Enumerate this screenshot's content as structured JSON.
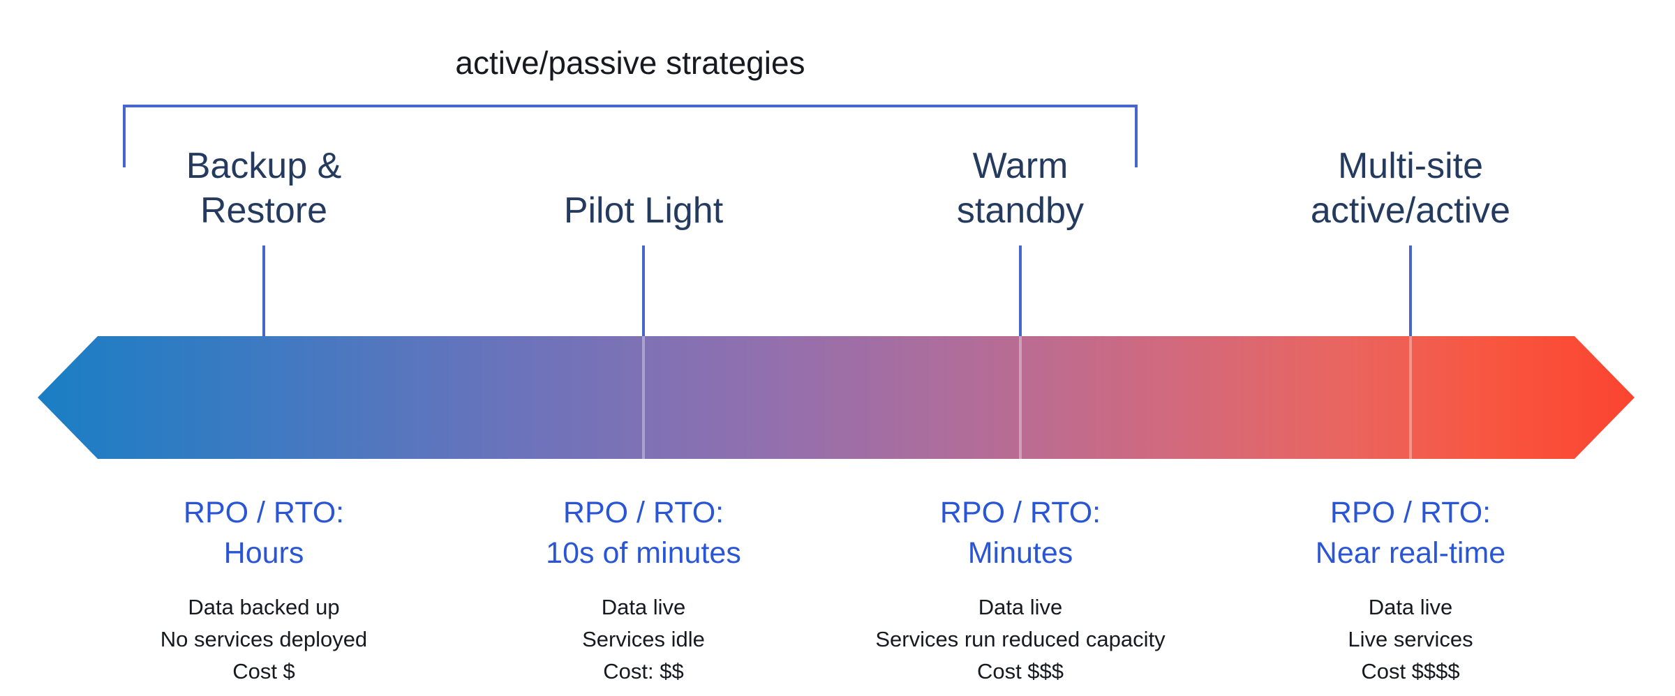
{
  "title": "active/passive strategies",
  "colors": {
    "heading_navy": "#243a5e",
    "rpo_blue": "#2a56d6",
    "line_blue": "#4566cf",
    "detail_text": "#16191f",
    "gradient_left": "#1a7ec4",
    "gradient_right": "#fb4430"
  },
  "strategies": [
    {
      "name": "Backup &\nRestore",
      "rpo_label": "RPO / RTO:",
      "rpo_value": "Hours",
      "details": [
        "Data backed up",
        "No services deployed",
        "Cost $"
      ]
    },
    {
      "name": "Pilot Light",
      "rpo_label": "RPO / RTO:",
      "rpo_value": "10s of minutes",
      "details": [
        "Data live",
        "Services idle",
        "Cost: $$"
      ]
    },
    {
      "name": "Warm\nstandby",
      "rpo_label": "RPO / RTO:",
      "rpo_value": "Minutes",
      "details": [
        "Data live",
        "Services run reduced capacity",
        "Cost $$$"
      ]
    },
    {
      "name": "Multi-site\nactive/active",
      "rpo_label": "RPO / RTO:",
      "rpo_value": "Near real-time",
      "details": [
        "Data live",
        "Live services",
        "Cost $$$$"
      ]
    }
  ]
}
